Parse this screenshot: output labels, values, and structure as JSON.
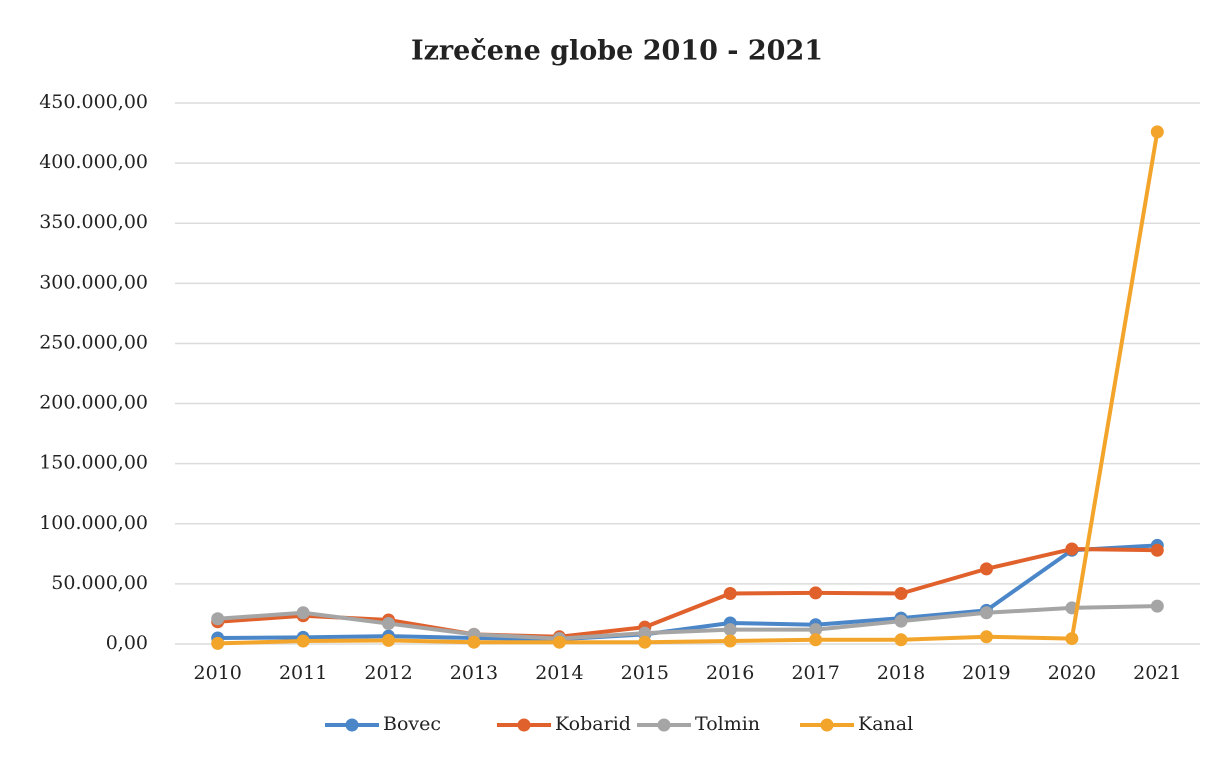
{
  "chart_data": {
    "type": "line",
    "title": "Izrečene globe 2010 - 2021",
    "categories": [
      "2010",
      "2011",
      "2012",
      "2013",
      "2014",
      "2015",
      "2016",
      "2017",
      "2018",
      "2019",
      "2020",
      "2021"
    ],
    "series": [
      {
        "name": "Bovec",
        "color": "#4a86c8",
        "values": [
          5000,
          5500,
          6500,
          5000,
          4000,
          8000,
          17500,
          16000,
          21500,
          28000,
          78000,
          82000
        ]
      },
      {
        "name": "Kobarid",
        "color": "#e0612c",
        "values": [
          18500,
          23500,
          20000,
          8000,
          6000,
          14000,
          42000,
          42500,
          42000,
          62500,
          79000,
          78000
        ]
      },
      {
        "name": "Tolmin",
        "color": "#a5a5a5",
        "values": [
          21000,
          26000,
          17000,
          8000,
          4500,
          9000,
          12000,
          12000,
          19000,
          26000,
          30000,
          31500
        ]
      },
      {
        "name": "Kanal",
        "color": "#f3a52b",
        "values": [
          500,
          2500,
          3000,
          1500,
          1500,
          1500,
          2500,
          3500,
          3500,
          6000,
          4500,
          426000
        ]
      }
    ],
    "ylim": [
      0,
      450000
    ],
    "yticks": [
      {
        "value": 0,
        "label": "0,00"
      },
      {
        "value": 50000,
        "label": "50.000,00"
      },
      {
        "value": 100000,
        "label": "100.000,00"
      },
      {
        "value": 150000,
        "label": "150.000,00"
      },
      {
        "value": 200000,
        "label": "200.000,00"
      },
      {
        "value": 250000,
        "label": "250.000,00"
      },
      {
        "value": 300000,
        "label": "300.000,00"
      },
      {
        "value": 350000,
        "label": "350.000,00"
      },
      {
        "value": 400000,
        "label": "400.000,00"
      },
      {
        "value": 450000,
        "label": "450.000,00"
      }
    ],
    "grid": true,
    "legend": "bottom"
  }
}
